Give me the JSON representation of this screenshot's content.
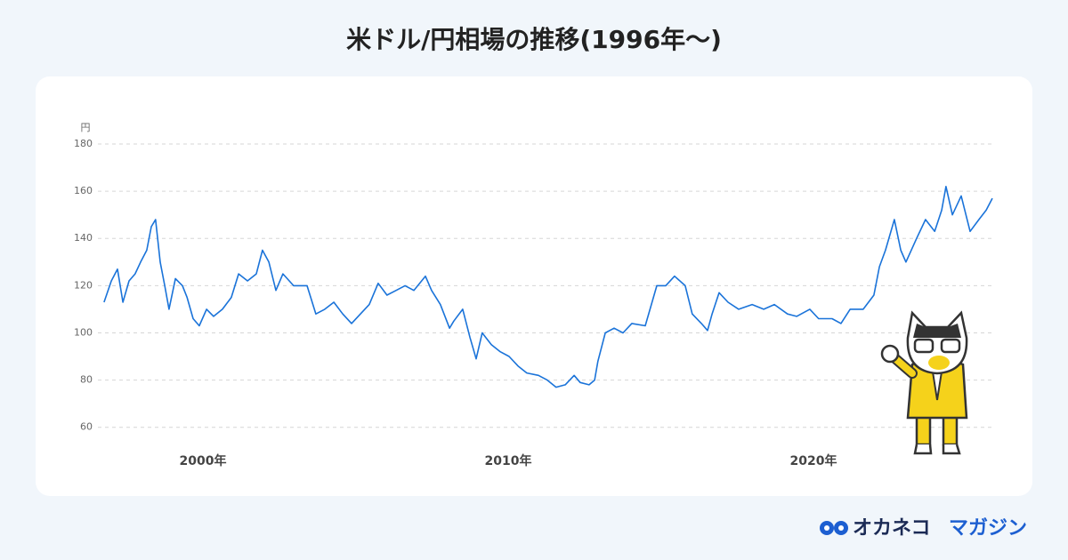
{
  "chart_data": {
    "type": "line",
    "title": "米ドル/円相場の推移(1996年〜)",
    "ylabel": "円",
    "color": "#1a73d9",
    "grid": true,
    "xlim": [
      1996.56,
      2025.86
    ],
    "ylim": [
      55,
      180
    ],
    "yticks": [
      60,
      80,
      100,
      120,
      140,
      160,
      180
    ],
    "xticks": [
      {
        "value": 2000,
        "label": "2000年"
      },
      {
        "value": 2010,
        "label": "2010年"
      },
      {
        "value": 2020,
        "label": "2020年"
      }
    ],
    "x": [
      1996.76,
      1997.0,
      1997.2,
      1997.38,
      1997.58,
      1997.78,
      1997.96,
      1998.16,
      1998.31,
      1998.45,
      1998.6,
      1998.75,
      1998.89,
      1999.1,
      1999.33,
      1999.48,
      1999.68,
      1999.88,
      2000.12,
      2000.35,
      2000.64,
      2000.93,
      2001.17,
      2001.46,
      2001.75,
      2001.95,
      2002.16,
      2002.39,
      2002.62,
      2002.97,
      2003.41,
      2003.7,
      2003.99,
      2004.29,
      2004.58,
      2004.87,
      2005.16,
      2005.45,
      2005.74,
      2006.03,
      2006.33,
      2006.62,
      2006.91,
      2007.29,
      2007.49,
      2007.78,
      2008.08,
      2008.22,
      2008.51,
      2008.75,
      2008.95,
      2009.15,
      2009.45,
      2009.74,
      2010.03,
      2010.32,
      2010.61,
      2010.99,
      2011.28,
      2011.57,
      2011.87,
      2012.16,
      2012.36,
      2012.65,
      2012.83,
      2012.94,
      2013.18,
      2013.47,
      2013.76,
      2014.05,
      2014.49,
      2014.87,
      2015.16,
      2015.45,
      2015.8,
      2016.03,
      2016.33,
      2016.53,
      2016.68,
      2016.91,
      2017.2,
      2017.55,
      2017.99,
      2018.37,
      2018.72,
      2019.15,
      2019.45,
      2019.88,
      2020.17,
      2020.61,
      2020.9,
      2021.2,
      2021.63,
      2021.98,
      2022.16,
      2022.36,
      2022.65,
      2022.86,
      2023.03,
      2023.38,
      2023.67,
      2023.97,
      2024.2,
      2024.34,
      2024.55,
      2024.84,
      2025.13,
      2025.42,
      2025.66,
      2025.86
    ],
    "values": [
      113,
      122,
      127,
      113,
      122,
      125,
      130,
      135,
      145,
      148,
      130,
      120,
      110,
      123,
      120,
      115,
      106,
      103,
      110,
      107,
      110,
      115,
      125,
      122,
      125,
      135,
      130,
      118,
      125,
      120,
      120,
      108,
      110,
      113,
      108,
      104,
      108,
      112,
      121,
      116,
      118,
      120,
      118,
      124,
      118,
      112,
      102,
      105,
      110,
      98,
      89,
      100,
      95,
      92,
      90,
      86,
      83,
      82,
      80,
      77,
      78,
      82,
      79,
      78,
      80,
      88,
      100,
      102,
      100,
      104,
      103,
      120,
      120,
      124,
      120,
      108,
      104,
      101,
      108,
      117,
      113,
      110,
      112,
      110,
      112,
      108,
      107,
      110,
      106,
      106,
      104,
      110,
      110,
      116,
      128,
      135,
      148,
      135,
      130,
      140,
      148,
      143,
      152,
      162,
      150,
      158,
      143,
      148,
      152,
      157
    ]
  },
  "brand": {
    "name": "オカネコ",
    "suffix": "マガジン"
  }
}
